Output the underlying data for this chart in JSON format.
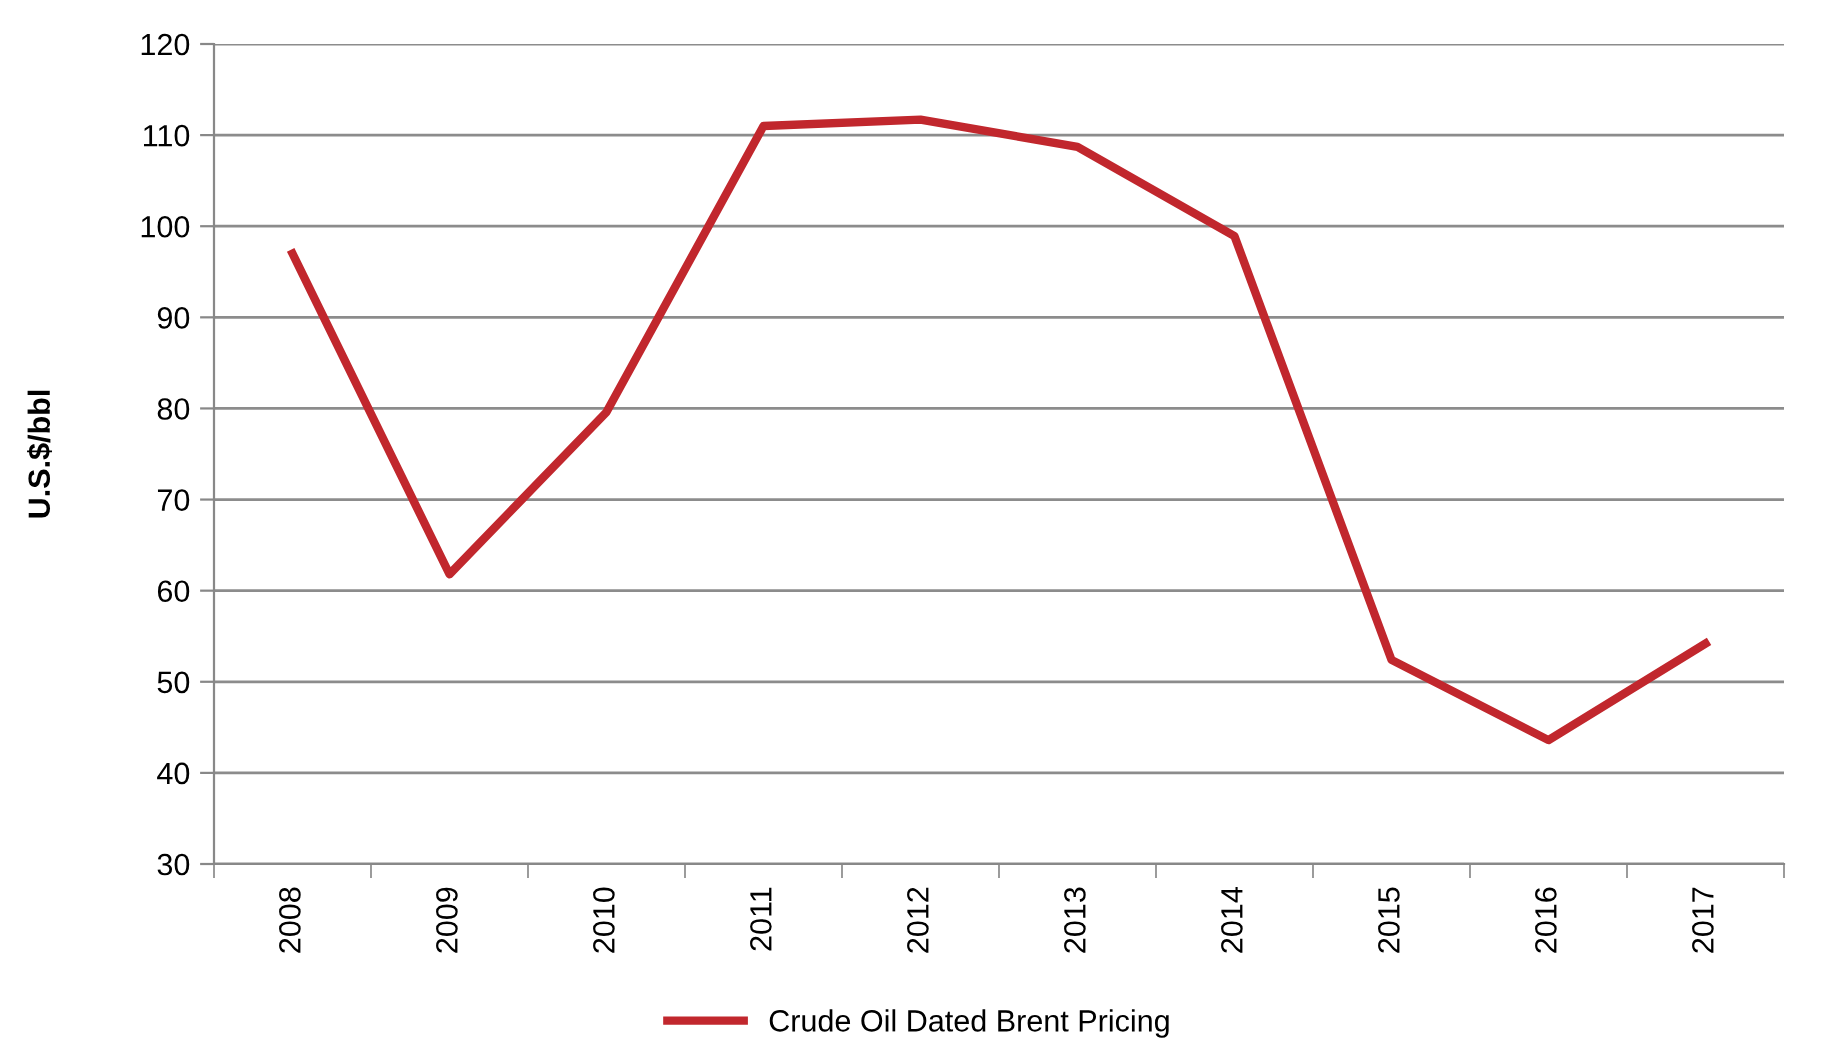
{
  "chart_data": {
    "type": "line",
    "ylabel": "U.S.$/bbl",
    "categories": [
      "2008",
      "2009",
      "2010",
      "2011",
      "2012",
      "2013",
      "2014",
      "2015",
      "2016",
      "2017"
    ],
    "series": [
      {
        "name": "Crude Oil Dated Brent Pricing",
        "color": "#c1272d",
        "values": [
          97.0,
          61.8,
          79.6,
          111.0,
          111.7,
          108.7,
          98.9,
          52.4,
          43.6,
          54.2
        ]
      }
    ],
    "ylim": [
      30,
      120
    ],
    "yticks": [
      30,
      40,
      50,
      60,
      70,
      80,
      90,
      100,
      110,
      120
    ],
    "grid": "y",
    "legend": "bottom",
    "marker": "none",
    "line_style": "solid"
  }
}
